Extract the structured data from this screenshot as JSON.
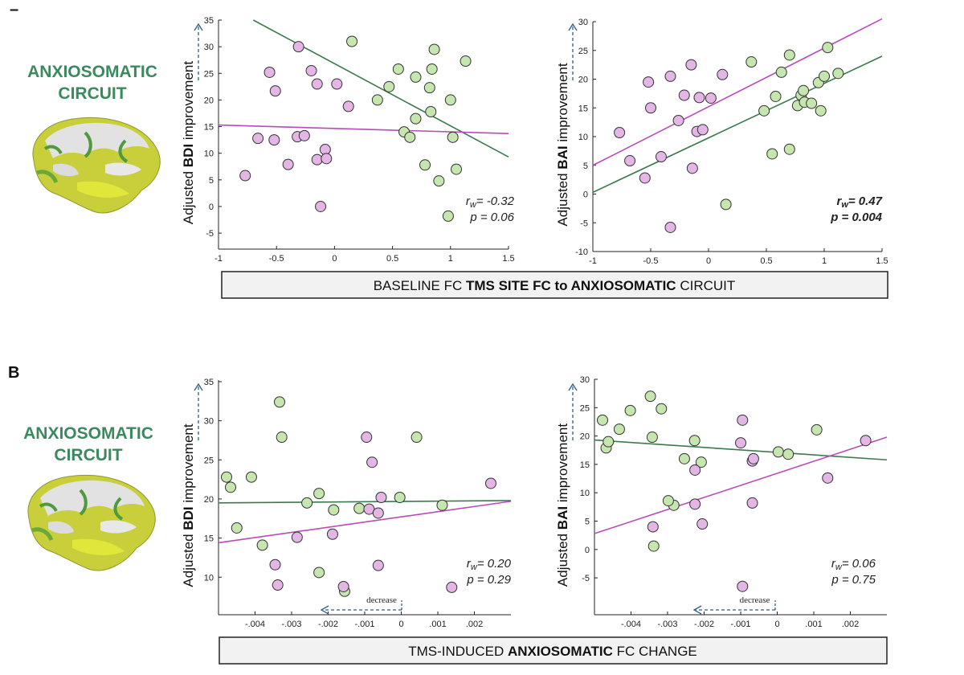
{
  "panel_letter": "B",
  "circuit_label": [
    "ANXIOSOMATIC",
    "CIRCUIT"
  ],
  "colors": {
    "green_dot": "#c6e6b0",
    "pink_dot": "#e3b6e6",
    "green_line": "#3c7a4e",
    "pink_line": "#b84bb8",
    "circuit_text": "#3a8a5e",
    "arrow": "#2e5e8a"
  },
  "icons": [
    "brain-icon",
    "up-arrow-icon",
    "left-arrow-icon"
  ],
  "row_labels": [
    {
      "pre": "BASELINE FC ",
      "bold1": "TMS SITE FC to ",
      "bold2": "ANXIOSOMATIC",
      "post": " CIRCUIT"
    },
    {
      "pre": "TMS-INDUCED ",
      "bold1": "",
      "bold2": "ANXIOSOMATIC",
      "post": " FC CHANGE"
    }
  ],
  "decrease_label": "decrease",
  "chart_data": [
    {
      "type": "scatter",
      "id": "a-bdi",
      "ylabel": {
        "pre": "Adjusted ",
        "bold": "BDI",
        "post": " improvement"
      },
      "xlim": [
        -1,
        1.5
      ],
      "ylim": [
        -8,
        35
      ],
      "xticks": [
        -1,
        -0.5,
        0,
        0.5,
        1,
        1.5
      ],
      "xtick_labels": [
        "-1",
        "-0.5",
        "0",
        "0.5",
        "1",
        "1.5"
      ],
      "yticks": [
        -5,
        0,
        5,
        10,
        15,
        20,
        25,
        30,
        35
      ],
      "ytick_labels": [
        "-5",
        "0",
        "5",
        "10",
        "15",
        "20",
        "25",
        "30",
        "35"
      ],
      "stat_r": "= -0.32",
      "stat_p": "p = 0.06",
      "stat_bold": false,
      "series": [
        {
          "color": "green",
          "points": [
            [
              0.15,
              31
            ],
            [
              0.37,
              20
            ],
            [
              0.47,
              22.5
            ],
            [
              0.55,
              25.8
            ],
            [
              0.6,
              14
            ],
            [
              0.65,
              13
            ],
            [
              0.7,
              16.5
            ],
            [
              0.7,
              24.3
            ],
            [
              0.78,
              7.8
            ],
            [
              0.82,
              22.3
            ],
            [
              0.83,
              17.8
            ],
            [
              0.84,
              25.8
            ],
            [
              0.86,
              29.5
            ],
            [
              0.9,
              4.8
            ],
            [
              0.98,
              -1.8
            ],
            [
              1.0,
              20
            ],
            [
              1.02,
              13
            ],
            [
              1.05,
              7
            ],
            [
              1.13,
              27.3
            ]
          ],
          "fit": [
            [
              -0.7,
              35
            ],
            [
              1.5,
              9.3
            ]
          ]
        },
        {
          "color": "pink",
          "points": [
            [
              -0.77,
              5.8
            ],
            [
              -0.66,
              12.8
            ],
            [
              -0.56,
              25.2
            ],
            [
              -0.51,
              21.7
            ],
            [
              -0.52,
              12.5
            ],
            [
              -0.4,
              7.9
            ],
            [
              -0.31,
              30
            ],
            [
              -0.32,
              13.1
            ],
            [
              -0.26,
              13.3
            ],
            [
              -0.2,
              25.5
            ],
            [
              -0.15,
              23
            ],
            [
              -0.15,
              8.8
            ],
            [
              -0.12,
              0
            ],
            [
              -0.08,
              10.7
            ],
            [
              -0.07,
              9
            ],
            [
              0.02,
              23
            ],
            [
              0.12,
              18.8
            ]
          ],
          "fit": [
            [
              -1,
              15.3
            ],
            [
              1.5,
              13.7
            ]
          ]
        }
      ]
    },
    {
      "type": "scatter",
      "id": "a-bai",
      "ylabel": {
        "pre": "Adjusted ",
        "bold": "BAI",
        "post": " improvement"
      },
      "xlim": [
        -1,
        1.5
      ],
      "ylim": [
        -10,
        30
      ],
      "xticks": [
        -1,
        -0.5,
        0,
        0.5,
        1,
        1.5
      ],
      "xtick_labels": [
        "-1",
        "-0.5",
        "0",
        "0.5",
        "1",
        "1.5"
      ],
      "yticks": [
        -10,
        -5,
        0,
        5,
        10,
        15,
        20,
        25,
        30
      ],
      "ytick_labels": [
        "-10",
        "-5",
        "0",
        "5",
        "10",
        "15",
        "20",
        "25",
        "30"
      ],
      "stat_r": "= 0.47",
      "stat_p": "p = 0.004",
      "stat_bold": true,
      "series": [
        {
          "color": "green",
          "points": [
            [
              0.15,
              -1.8
            ],
            [
              0.37,
              23
            ],
            [
              0.48,
              14.5
            ],
            [
              0.55,
              7
            ],
            [
              0.58,
              17
            ],
            [
              0.63,
              21.2
            ],
            [
              0.7,
              24.2
            ],
            [
              0.7,
              7.8
            ],
            [
              0.77,
              15.4
            ],
            [
              0.8,
              17.2
            ],
            [
              0.82,
              18
            ],
            [
              0.83,
              16
            ],
            [
              0.89,
              15.8
            ],
            [
              0.95,
              19.4
            ],
            [
              0.97,
              14.5
            ],
            [
              1.0,
              20.5
            ],
            [
              1.03,
              25.5
            ],
            [
              1.12,
              21
            ]
          ],
          "fit": [
            [
              -1,
              0.3
            ],
            [
              1.5,
              24
            ]
          ]
        },
        {
          "color": "pink",
          "points": [
            [
              -0.77,
              10.7
            ],
            [
              -0.68,
              5.8
            ],
            [
              -0.55,
              2.8
            ],
            [
              -0.52,
              19.5
            ],
            [
              -0.5,
              15
            ],
            [
              -0.41,
              6.5
            ],
            [
              -0.33,
              20.5
            ],
            [
              -0.33,
              -5.8
            ],
            [
              -0.26,
              12.8
            ],
            [
              -0.21,
              17.2
            ],
            [
              -0.15,
              22.5
            ],
            [
              -0.14,
              4.5
            ],
            [
              -0.1,
              10.9
            ],
            [
              -0.08,
              16.8
            ],
            [
              -0.05,
              11.2
            ],
            [
              0.02,
              16.7
            ],
            [
              0.12,
              20.8
            ]
          ],
          "fit": [
            [
              -1,
              5
            ],
            [
              1.5,
              30.5
            ]
          ]
        }
      ]
    },
    {
      "type": "scatter",
      "id": "b-bdi",
      "ylabel": {
        "pre": "Adjusted ",
        "bold": "BDI",
        "post": " improvement"
      },
      "xlim": [
        -0.005,
        0.003
      ],
      "ylim": [
        5.2,
        35.2
      ],
      "xticks": [
        -0.004,
        -0.003,
        -0.002,
        -0.001,
        0,
        0.001,
        0.002
      ],
      "xtick_labels": [
        "-.004",
        "-.003",
        "-.002",
        "-.001",
        "0",
        ".001",
        ".002"
      ],
      "yticks": [
        10,
        15,
        20,
        25,
        30,
        35
      ],
      "ytick_labels": [
        "10",
        "15",
        "20",
        "25",
        "30",
        "35"
      ],
      "stat_r": "= 0.20",
      "stat_p": "p = 0.29",
      "stat_bold": false,
      "series": [
        {
          "color": "green",
          "points": [
            [
              -0.00478,
              22.8
            ],
            [
              -0.00467,
              21.5
            ],
            [
              -0.0045,
              16.3
            ],
            [
              -0.0041,
              22.8
            ],
            [
              -0.0038,
              14.1
            ],
            [
              -0.00333,
              32.4
            ],
            [
              -0.00327,
              27.9
            ],
            [
              -0.00258,
              19.5
            ],
            [
              -0.00225,
              20.7
            ],
            [
              -0.00185,
              18.6
            ],
            [
              -0.00115,
              18.8
            ],
            [
              -4e-05,
              20.2
            ],
            [
              0.00042,
              27.9
            ],
            [
              0.00112,
              19.2
            ],
            [
              -0.00225,
              10.6
            ],
            [
              -0.00155,
              8.2
            ]
          ],
          "fit": [
            [
              -0.005,
              19.5
            ],
            [
              0.003,
              19.8
            ]
          ]
        },
        {
          "color": "pink",
          "points": [
            [
              -0.00345,
              11.6
            ],
            [
              -0.00338,
              9.0
            ],
            [
              -0.00285,
              15.1
            ],
            [
              -0.00188,
              15.5
            ],
            [
              -0.00158,
              8.8
            ],
            [
              -0.00095,
              27.9
            ],
            [
              -0.00088,
              18.7
            ],
            [
              -0.0008,
              24.7
            ],
            [
              -0.00063,
              18.2
            ],
            [
              -0.00063,
              11.5
            ],
            [
              -0.00055,
              20.2
            ],
            [
              0.00138,
              8.7
            ],
            [
              0.00245,
              22.0
            ]
          ],
          "fit": [
            [
              -0.005,
              14.4
            ],
            [
              0.003,
              19.7
            ]
          ]
        }
      ]
    },
    {
      "type": "scatter",
      "id": "b-bai",
      "ylabel": {
        "pre": "Adjusted ",
        "bold": "BAI",
        "post": " improvement"
      },
      "xlim": [
        -0.005,
        0.003
      ],
      "ylim": [
        -11.5,
        30
      ],
      "xticks": [
        -0.004,
        -0.003,
        -0.002,
        -0.001,
        0,
        0.001,
        0.002
      ],
      "xtick_labels": [
        "-.004",
        "-.003",
        "-.002",
        "-.001",
        "0",
        ".001",
        ".002"
      ],
      "yticks": [
        -5,
        0,
        5,
        10,
        15,
        20,
        25,
        30
      ],
      "ytick_labels": [
        "-5",
        "0",
        "5",
        "10",
        "15",
        "20",
        "25",
        "30"
      ],
      "stat_r": "= 0.06",
      "stat_p": "p = 0.75",
      "stat_bold": false,
      "series": [
        {
          "color": "green",
          "points": [
            [
              -0.00478,
              22.8
            ],
            [
              -0.00468,
              17.9
            ],
            [
              -0.00462,
              19.0
            ],
            [
              -0.00432,
              21.2
            ],
            [
              -0.00402,
              24.5
            ],
            [
              -0.00347,
              27.0
            ],
            [
              -0.00342,
              19.8
            ],
            [
              -0.00317,
              24.8
            ],
            [
              -0.00283,
              7.8
            ],
            [
              -0.00254,
              16.0
            ],
            [
              -0.00226,
              19.2
            ],
            [
              -0.00208,
              15.4
            ],
            [
              3e-05,
              17.2
            ],
            [
              0.0003,
              16.8
            ],
            [
              0.00108,
              21.1
            ],
            [
              -0.00298,
              8.6
            ],
            [
              -0.00338,
              0.6
            ]
          ],
          "fit": [
            [
              -0.005,
              19.3
            ],
            [
              0.003,
              15.8
            ]
          ]
        },
        {
          "color": "pink",
          "points": [
            [
              -0.0034,
              4.0
            ],
            [
              -0.00225,
              14.0
            ],
            [
              -0.00225,
              8.0
            ],
            [
              -0.00205,
              4.5
            ],
            [
              -0.00095,
              22.8
            ],
            [
              -0.001,
              18.8
            ],
            [
              -0.00068,
              15.6
            ],
            [
              -0.00065,
              16.0
            ],
            [
              -0.00068,
              8.2
            ],
            [
              -0.00095,
              -6.5
            ],
            [
              0.00138,
              12.6
            ],
            [
              0.00242,
              19.2
            ]
          ],
          "fit": [
            [
              -0.005,
              2.8
            ],
            [
              0.003,
              19.8
            ]
          ]
        }
      ]
    }
  ]
}
